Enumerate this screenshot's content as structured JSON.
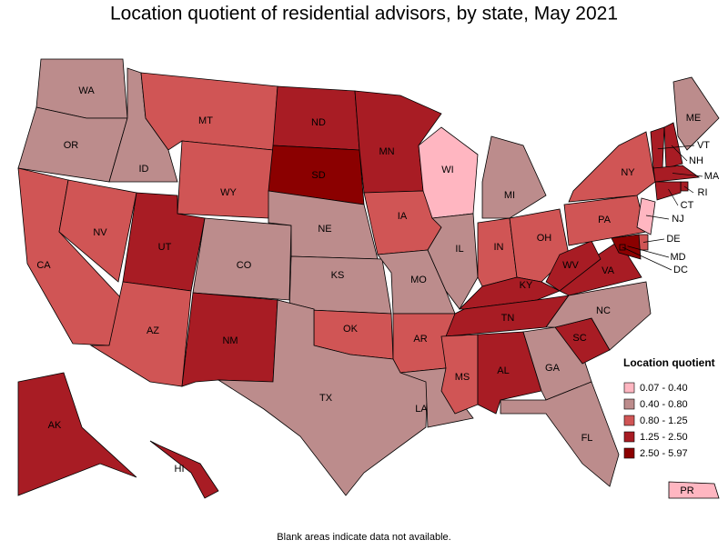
{
  "title": "Location quotient of residential advisors, by state, May 2021",
  "legend": {
    "title": "Location quotient",
    "items": [
      {
        "label": "0.07 - 0.40",
        "color": "#ffb6c1"
      },
      {
        "label": "0.40 - 0.80",
        "color": "#bc8c8c"
      },
      {
        "label": "0.80 - 1.25",
        "color": "#d05555"
      },
      {
        "label": "1.25 - 2.50",
        "color": "#a81c24"
      },
      {
        "label": "2.50 - 5.97",
        "color": "#8b0000"
      }
    ]
  },
  "states": [
    {
      "label": "WA",
      "range": "0.40 - 0.80"
    },
    {
      "label": "OR",
      "range": "0.40 - 0.80"
    },
    {
      "label": "CA",
      "range": "0.80 - 1.25"
    },
    {
      "label": "NV",
      "range": "0.80 - 1.25"
    },
    {
      "label": "ID",
      "range": "0.40 - 0.80"
    },
    {
      "label": "MT",
      "range": "0.80 - 1.25"
    },
    {
      "label": "WY",
      "range": "0.80 - 1.25"
    },
    {
      "label": "UT",
      "range": "1.25 - 2.50"
    },
    {
      "label": "AZ",
      "range": "0.80 - 1.25"
    },
    {
      "label": "CO",
      "range": "0.40 - 0.80"
    },
    {
      "label": "NM",
      "range": "1.25 - 2.50"
    },
    {
      "label": "ND",
      "range": "1.25 - 2.50"
    },
    {
      "label": "SD",
      "range": "2.50 - 5.97"
    },
    {
      "label": "NE",
      "range": "0.40 - 0.80"
    },
    {
      "label": "KS",
      "range": "0.40 - 0.80"
    },
    {
      "label": "OK",
      "range": "0.80 - 1.25"
    },
    {
      "label": "TX",
      "range": "0.40 - 0.80"
    },
    {
      "label": "MN",
      "range": "1.25 - 2.50"
    },
    {
      "label": "IA",
      "range": "0.80 - 1.25"
    },
    {
      "label": "MO",
      "range": "0.40 - 0.80"
    },
    {
      "label": "AR",
      "range": "0.80 - 1.25"
    },
    {
      "label": "LA",
      "range": "0.40 - 0.80"
    },
    {
      "label": "WI",
      "range": "0.07 - 0.40"
    },
    {
      "label": "IL",
      "range": "0.40 - 0.80"
    },
    {
      "label": "MI",
      "range": "0.40 - 0.80"
    },
    {
      "label": "IN",
      "range": "0.80 - 1.25"
    },
    {
      "label": "OH",
      "range": "0.80 - 1.25"
    },
    {
      "label": "KY",
      "range": "1.25 - 2.50"
    },
    {
      "label": "TN",
      "range": "1.25 - 2.50"
    },
    {
      "label": "MS",
      "range": "0.80 - 1.25"
    },
    {
      "label": "AL",
      "range": "1.25 - 2.50"
    },
    {
      "label": "GA",
      "range": "0.40 - 0.80"
    },
    {
      "label": "FL",
      "range": "0.40 - 0.80"
    },
    {
      "label": "SC",
      "range": "1.25 - 2.50"
    },
    {
      "label": "NC",
      "range": "0.40 - 0.80"
    },
    {
      "label": "VA",
      "range": "1.25 - 2.50"
    },
    {
      "label": "WV",
      "range": "1.25 - 2.50"
    },
    {
      "label": "PA",
      "range": "0.80 - 1.25"
    },
    {
      "label": "NY",
      "range": "0.80 - 1.25"
    },
    {
      "label": "ME",
      "range": "0.40 - 0.80"
    },
    {
      "label": "VT",
      "range": "1.25 - 2.50"
    },
    {
      "label": "NH",
      "range": "1.25 - 2.50"
    },
    {
      "label": "MA",
      "range": "1.25 - 2.50"
    },
    {
      "label": "RI",
      "range": "1.25 - 2.50"
    },
    {
      "label": "CT",
      "range": "1.25 - 2.50"
    },
    {
      "label": "NJ",
      "range": "0.07 - 0.40"
    },
    {
      "label": "DE",
      "range": "0.80 - 1.25"
    },
    {
      "label": "MD",
      "range": "2.50 - 5.97"
    },
    {
      "label": "DC",
      "range": "2.50 - 5.97"
    },
    {
      "label": "AK",
      "range": "1.25 - 2.50"
    },
    {
      "label": "HI",
      "range": "1.25 - 2.50"
    },
    {
      "label": "PR",
      "range": "0.07 - 0.40"
    }
  ],
  "footnote": "Blank areas indicate data not available."
}
